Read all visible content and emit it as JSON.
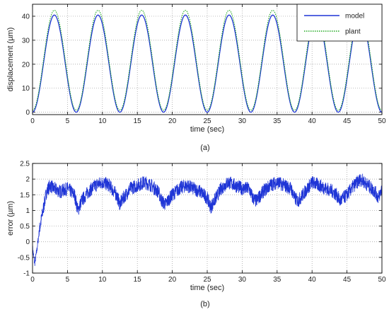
{
  "chart_data": [
    {
      "type": "line",
      "caption": "(a)",
      "xlabel": "time (sec)",
      "ylabel": "displacement (µm)",
      "xlim": [
        0,
        50
      ],
      "ylim": [
        -1,
        45
      ],
      "xticks": [
        0,
        5,
        10,
        15,
        20,
        25,
        30,
        35,
        40,
        45,
        50
      ],
      "yticks": [
        0,
        10,
        20,
        30,
        40
      ],
      "grid": true,
      "legend_position": "top-right",
      "period_sec": 6.25,
      "series": [
        {
          "name": "model",
          "color": "#1f35d6",
          "style": "solid",
          "min": 0,
          "max": 40.5
        },
        {
          "name": "plant",
          "color": "#22aa22",
          "style": "dotted",
          "min": 0.8,
          "max": 42.5
        }
      ]
    },
    {
      "type": "line",
      "caption": "(b)",
      "xlabel": "time (sec)",
      "ylabel": "error (µm)",
      "xlim": [
        0,
        50
      ],
      "ylim": [
        -1,
        2.5
      ],
      "xticks": [
        0,
        5,
        10,
        15,
        20,
        25,
        30,
        35,
        40,
        45,
        50
      ],
      "yticks": [
        -1,
        -0.5,
        0,
        0.5,
        1,
        1.5,
        2,
        2.5
      ],
      "grid": true,
      "series": [
        {
          "name": "",
          "color": "#1f35d6",
          "style": "solid",
          "x": [
            0,
            0.3,
            0.6,
            1,
            1.5,
            2,
            2.5,
            3,
            4,
            5,
            6,
            6.5,
            7,
            8,
            9,
            10,
            11,
            12,
            12.5,
            13,
            14,
            15,
            16,
            17,
            18,
            18.5,
            19,
            20,
            21,
            22,
            23,
            24,
            25,
            25.5,
            26,
            27,
            28,
            29,
            30,
            31,
            31.5,
            32,
            33,
            34,
            35,
            36,
            37,
            37.5,
            38,
            39,
            40,
            41,
            42,
            43,
            43.5,
            44,
            45,
            46,
            47,
            48,
            49,
            49.5,
            50
          ],
          "values": [
            -0.2,
            -0.7,
            -0.3,
            0.4,
            1.0,
            1.6,
            1.8,
            1.7,
            1.6,
            1.7,
            1.5,
            1.0,
            1.3,
            1.6,
            1.8,
            1.9,
            1.8,
            1.5,
            1.2,
            1.4,
            1.7,
            1.8,
            1.9,
            1.8,
            1.6,
            1.3,
            1.2,
            1.5,
            1.7,
            1.8,
            1.7,
            1.6,
            1.4,
            1.1,
            1.3,
            1.7,
            1.9,
            1.8,
            1.7,
            1.7,
            1.4,
            1.3,
            1.6,
            1.8,
            1.9,
            1.8,
            1.7,
            1.4,
            1.3,
            1.6,
            1.9,
            1.8,
            1.7,
            1.6,
            1.5,
            1.3,
            1.5,
            1.8,
            2.0,
            1.8,
            1.6,
            1.4,
            1.7
          ]
        }
      ]
    }
  ]
}
